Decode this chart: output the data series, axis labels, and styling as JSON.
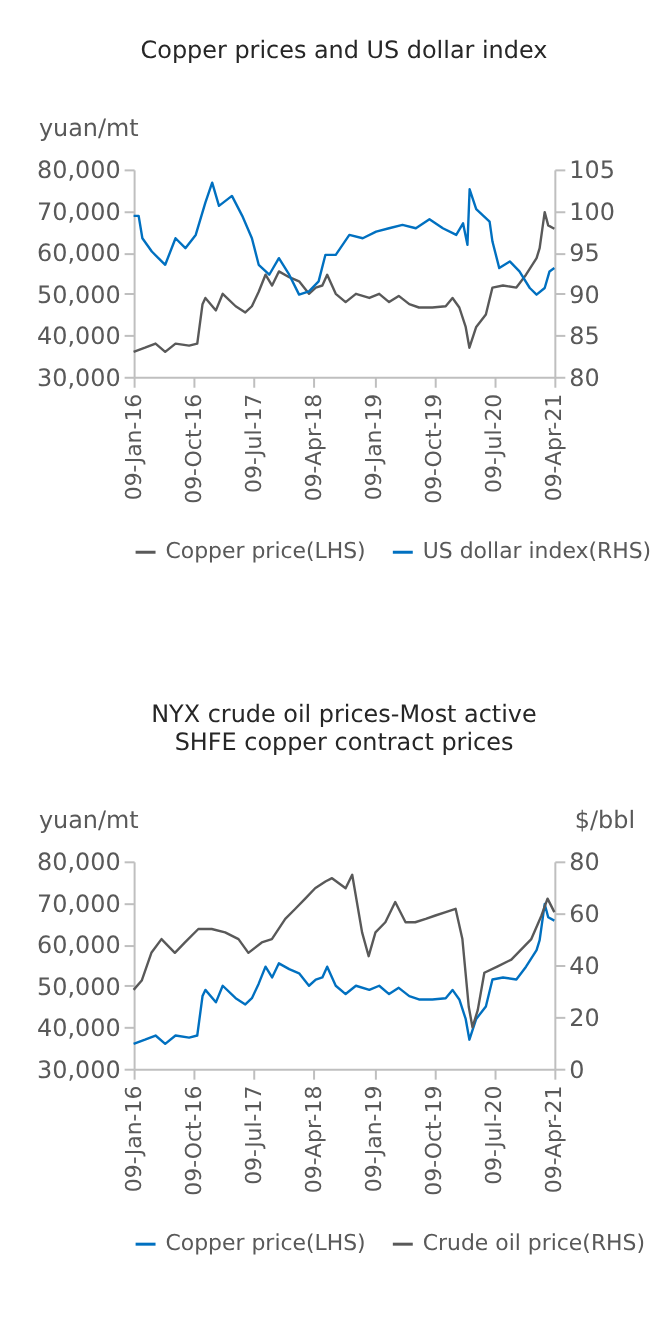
{
  "chart_data": [
    {
      "type": "line",
      "title": "Copper prices and US dollar index",
      "ylabel": "yuan/mt",
      "legend": "bottom",
      "grid": false,
      "marker": "none",
      "line_style": "solid",
      "xlim": [
        "2016-01-09",
        "2021-04-09"
      ],
      "xticks": [
        {
          "value": "2016-01-09",
          "label": "09-Jan-16"
        },
        {
          "value": "2016-10-09",
          "label": "09-Oct-16"
        },
        {
          "value": "2017-07-09",
          "label": "09-Jul-17"
        },
        {
          "value": "2018-04-09",
          "label": "09-Apr-18"
        },
        {
          "value": "2019-01-09",
          "label": "09-Jan-19"
        },
        {
          "value": "2019-10-09",
          "label": "09-Oct-19"
        },
        {
          "value": "2020-07-09",
          "label": "09-Jul-20"
        },
        {
          "value": "2021-04-09",
          "label": "09-Apr-21"
        }
      ],
      "ylim": [
        30000,
        80000
      ],
      "yticks": [
        {
          "value": 30000,
          "label": "30,000"
        },
        {
          "value": 40000,
          "label": "40,000"
        },
        {
          "value": 50000,
          "label": "50,000"
        },
        {
          "value": 60000,
          "label": "60,000"
        },
        {
          "value": 70000,
          "label": "70,000"
        },
        {
          "value": 80000,
          "label": "80,000"
        }
      ],
      "y2lim": [
        80,
        105
      ],
      "y2ticks": [
        80,
        85,
        90,
        95,
        100,
        105
      ],
      "series": [
        {
          "name": "Copper price(LHS)",
          "color": "#595959",
          "axis": "y",
          "x": [
            "2016-01-09",
            "2016-03-01",
            "2016-04-18",
            "2016-06-01",
            "2016-07-18",
            "2016-09-18",
            "2016-10-25",
            "2016-11-18",
            "2016-12-01",
            "2017-01-18",
            "2017-02-18",
            "2017-04-18",
            "2017-06-01",
            "2017-07-01",
            "2017-08-01",
            "2017-09-01",
            "2017-10-01",
            "2017-11-01",
            "2017-12-18",
            "2018-02-01",
            "2018-03-18",
            "2018-04-18",
            "2018-05-18",
            "2018-06-09",
            "2018-07-18",
            "2018-09-01",
            "2018-10-18",
            "2018-12-18",
            "2019-02-01",
            "2019-03-18",
            "2019-05-01",
            "2019-06-18",
            "2019-08-01",
            "2019-10-01",
            "2019-12-01",
            "2020-01-01",
            "2020-02-01",
            "2020-03-01",
            "2020-03-18",
            "2020-04-18",
            "2020-06-01",
            "2020-07-01",
            "2020-08-18",
            "2020-10-18",
            "2020-12-01",
            "2021-01-18",
            "2021-02-01",
            "2021-02-24",
            "2021-03-12",
            "2021-04-09"
          ],
          "values": [
            36000,
            37000,
            38000,
            36000,
            38000,
            37500,
            38000,
            47500,
            49000,
            46000,
            50000,
            47000,
            45500,
            47000,
            50500,
            54600,
            52000,
            55400,
            54000,
            53000,
            50000,
            51500,
            52000,
            54600,
            50000,
            48000,
            50000,
            49000,
            50000,
            48000,
            49500,
            47500,
            46700,
            46700,
            47000,
            49000,
            46700,
            42000,
            37000,
            42000,
            45000,
            51500,
            52000,
            51500,
            54600,
            58600,
            61000,
            69700,
            66500,
            65700
          ]
        },
        {
          "name": "US dollar index(RHS)",
          "color": "#0070c0",
          "axis": "y2",
          "x": [
            "2016-01-09",
            "2016-02-01",
            "2016-02-18",
            "2016-04-01",
            "2016-05-01",
            "2016-06-01",
            "2016-07-18",
            "2016-09-01",
            "2016-10-18",
            "2016-12-01",
            "2017-01-01",
            "2017-02-01",
            "2017-04-01",
            "2017-05-18",
            "2017-07-01",
            "2017-08-01",
            "2017-09-18",
            "2017-11-01",
            "2017-12-18",
            "2018-02-01",
            "2018-03-18",
            "2018-05-01",
            "2018-06-01",
            "2018-07-18",
            "2018-09-18",
            "2018-11-18",
            "2019-01-18",
            "2019-03-18",
            "2019-05-18",
            "2019-07-18",
            "2019-09-18",
            "2019-11-18",
            "2020-01-18",
            "2020-02-18",
            "2020-03-09",
            "2020-03-19",
            "2020-04-18",
            "2020-06-18",
            "2020-07-01",
            "2020-08-01",
            "2020-09-18",
            "2020-11-01",
            "2020-12-18",
            "2021-01-18",
            "2021-02-24",
            "2021-03-18",
            "2021-04-09"
          ],
          "values": [
            99.4,
            99.4,
            96.7,
            95.1,
            94.3,
            93.5,
            96.7,
            95.5,
            97.1,
            101.0,
            103.4,
            100.6,
            101.8,
            99.4,
            96.7,
            93.5,
            92.3,
            94.3,
            92.3,
            89.9,
            90.3,
            91.5,
            94.7,
            94.7,
            97.1,
            96.7,
            97.5,
            97.9,
            98.3,
            97.9,
            99.0,
            97.9,
            97.1,
            98.5,
            95.9,
            102.6,
            100.2,
            98.7,
            96.3,
            93.1,
            93.9,
            92.7,
            90.7,
            89.9,
            90.7,
            92.7,
            93.1
          ]
        }
      ]
    },
    {
      "type": "line",
      "title": "NYX crude oil prices-Most active\nSHFE copper contract prices",
      "ylabel": "yuan/mt",
      "y2label": "$/bbl",
      "legend": "bottom",
      "grid": false,
      "marker": "none",
      "line_style": "solid",
      "xlim": [
        "2016-01-09",
        "2021-04-09"
      ],
      "xticks": [
        {
          "value": "2016-01-09",
          "label": "09-Jan-16"
        },
        {
          "value": "2016-10-09",
          "label": "09-Oct-16"
        },
        {
          "value": "2017-07-09",
          "label": "09-Jul-17"
        },
        {
          "value": "2018-04-09",
          "label": "09-Apr-18"
        },
        {
          "value": "2019-01-09",
          "label": "09-Jan-19"
        },
        {
          "value": "2019-10-09",
          "label": "09-Oct-19"
        },
        {
          "value": "2020-07-09",
          "label": "09-Jul-20"
        },
        {
          "value": "2021-04-09",
          "label": "09-Apr-21"
        }
      ],
      "ylim": [
        30000,
        80000
      ],
      "yticks": [
        {
          "value": 30000,
          "label": "30,000"
        },
        {
          "value": 40000,
          "label": "40,000"
        },
        {
          "value": 50000,
          "label": "50,000"
        },
        {
          "value": 60000,
          "label": "60,000"
        },
        {
          "value": 70000,
          "label": "70,000"
        },
        {
          "value": 80000,
          "label": "80,000"
        }
      ],
      "y2lim": [
        0,
        80
      ],
      "y2ticks": [
        0,
        20,
        40,
        60,
        80
      ],
      "series": [
        {
          "name": "Copper price(LHS)",
          "color": "#0070c0",
          "axis": "y",
          "x": [
            "2016-01-09",
            "2016-03-01",
            "2016-04-18",
            "2016-06-01",
            "2016-07-18",
            "2016-09-18",
            "2016-10-25",
            "2016-11-18",
            "2016-12-01",
            "2017-01-18",
            "2017-02-18",
            "2017-04-18",
            "2017-06-01",
            "2017-07-01",
            "2017-08-01",
            "2017-09-01",
            "2017-10-01",
            "2017-11-01",
            "2017-12-18",
            "2018-02-01",
            "2018-03-18",
            "2018-04-18",
            "2018-05-18",
            "2018-06-09",
            "2018-07-18",
            "2018-09-01",
            "2018-10-18",
            "2018-12-18",
            "2019-02-01",
            "2019-03-18",
            "2019-05-01",
            "2019-06-18",
            "2019-08-01",
            "2019-10-01",
            "2019-12-01",
            "2020-01-01",
            "2020-02-01",
            "2020-03-01",
            "2020-03-18",
            "2020-04-18",
            "2020-06-01",
            "2020-07-01",
            "2020-08-18",
            "2020-10-18",
            "2020-12-01",
            "2021-01-18",
            "2021-02-01",
            "2021-02-24",
            "2021-03-12",
            "2021-04-09"
          ],
          "values": [
            36000,
            37000,
            38000,
            36000,
            38000,
            37500,
            38000,
            47500,
            49000,
            46000,
            50000,
            47000,
            45500,
            47000,
            50500,
            54600,
            52000,
            55400,
            54000,
            53000,
            50000,
            51500,
            52000,
            54600,
            50000,
            48000,
            50000,
            49000,
            50000,
            48000,
            49500,
            47500,
            46700,
            46700,
            47000,
            49000,
            46700,
            42000,
            37000,
            42000,
            45000,
            51500,
            52000,
            51500,
            54600,
            58600,
            61000,
            69700,
            66500,
            65700
          ]
        },
        {
          "name": "Crude oil price(RHS)",
          "color": "#595959",
          "axis": "y2",
          "x": [
            "2016-01-09",
            "2016-02-15",
            "2016-03-30",
            "2016-05-15",
            "2016-07-15",
            "2016-08-30",
            "2016-10-30",
            "2016-12-30",
            "2017-03-01",
            "2017-05-01",
            "2017-06-15",
            "2017-08-15",
            "2017-09-30",
            "2017-11-30",
            "2018-01-15",
            "2018-03-01",
            "2018-04-15",
            "2018-06-01",
            "2018-07-01",
            "2018-09-01",
            "2018-10-01",
            "2018-11-15",
            "2018-12-15",
            "2019-01-15",
            "2019-03-01",
            "2019-04-15",
            "2019-06-01",
            "2019-07-15",
            "2019-09-01",
            "2019-10-15",
            "2019-12-01",
            "2020-01-15",
            "2020-02-15",
            "2020-03-15",
            "2020-04-01",
            "2020-04-25",
            "2020-05-25",
            "2020-07-25",
            "2020-09-25",
            "2020-11-25",
            "2020-12-25",
            "2021-02-09",
            "2021-03-09",
            "2021-04-09"
          ],
          "values": [
            30.4,
            34,
            44.7,
            50,
            44.7,
            48.7,
            53.9,
            53.9,
            52.6,
            50,
            44.7,
            48.7,
            50,
            57.8,
            61.7,
            65.6,
            69.6,
            72.2,
            73.5,
            69.6,
            74.8,
            52.6,
            43.4,
            52.6,
            56.5,
            64.3,
            56.5,
            56.5,
            57.8,
            59.1,
            60.4,
            61.7,
            50,
            23.9,
            16,
            22.6,
            37,
            39.5,
            42.1,
            47.4,
            50,
            59,
            65.6,
            60.4
          ]
        }
      ]
    }
  ]
}
